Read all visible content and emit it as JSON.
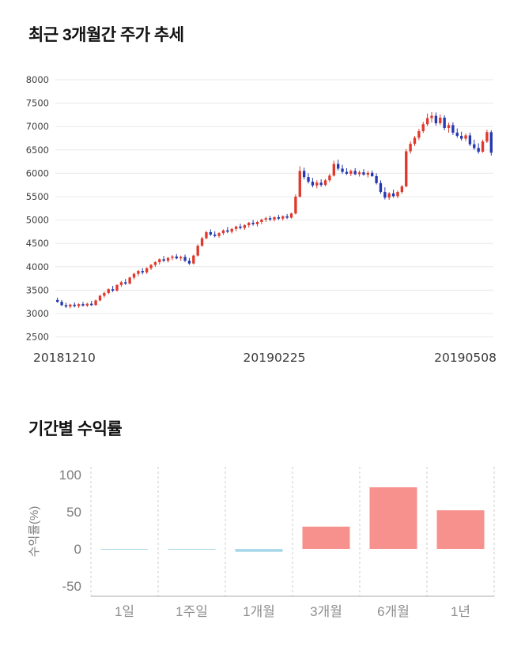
{
  "price_section": {
    "title": "최근 3개월간 주가 추세"
  },
  "returns_section": {
    "title": "기간별 수익률",
    "ylabel": "수익률(%)"
  },
  "chart_data": [
    {
      "type": "candlestick",
      "title": "최근 3개월간 주가 추세",
      "ylim": [
        2500,
        8000
      ],
      "yticks": [
        8000,
        7500,
        7000,
        6500,
        6000,
        5500,
        5000,
        4500,
        4000,
        3500,
        3000,
        2500
      ],
      "x_axis_labels": [
        "20181210",
        "20190225",
        "20190508"
      ],
      "up_color": "#e0392b",
      "down_color": "#2438b0",
      "grid_color": "#e8e8e8",
      "candles": [
        [
          3290,
          3340,
          3230,
          3250
        ],
        [
          3250,
          3290,
          3160,
          3180
        ],
        [
          3180,
          3230,
          3120,
          3150
        ],
        [
          3150,
          3210,
          3110,
          3190
        ],
        [
          3190,
          3240,
          3130,
          3160
        ],
        [
          3160,
          3220,
          3120,
          3200
        ],
        [
          3200,
          3250,
          3150,
          3170
        ],
        [
          3170,
          3230,
          3140,
          3210
        ],
        [
          3210,
          3270,
          3160,
          3180
        ],
        [
          3180,
          3300,
          3170,
          3280
        ],
        [
          3280,
          3400,
          3260,
          3380
        ],
        [
          3380,
          3470,
          3340,
          3440
        ],
        [
          3440,
          3540,
          3410,
          3520
        ],
        [
          3520,
          3590,
          3460,
          3490
        ],
        [
          3490,
          3630,
          3470,
          3610
        ],
        [
          3610,
          3700,
          3570,
          3670
        ],
        [
          3670,
          3740,
          3610,
          3640
        ],
        [
          3640,
          3790,
          3620,
          3770
        ],
        [
          3770,
          3870,
          3730,
          3850
        ],
        [
          3850,
          3930,
          3800,
          3910
        ],
        [
          3910,
          3970,
          3840,
          3880
        ],
        [
          3880,
          3990,
          3850,
          3970
        ],
        [
          3970,
          4060,
          3930,
          4040
        ],
        [
          4040,
          4120,
          4000,
          4100
        ],
        [
          4100,
          4180,
          4050,
          4160
        ],
        [
          4160,
          4230,
          4100,
          4130
        ],
        [
          4130,
          4210,
          4090,
          4190
        ],
        [
          4190,
          4250,
          4140,
          4220
        ],
        [
          4220,
          4270,
          4160,
          4180
        ],
        [
          4180,
          4240,
          4130,
          4210
        ],
        [
          4210,
          4260,
          4100,
          4130
        ],
        [
          4130,
          4190,
          4040,
          4070
        ],
        [
          4070,
          4260,
          4050,
          4240
        ],
        [
          4240,
          4480,
          4220,
          4450
        ],
        [
          4450,
          4640,
          4430,
          4610
        ],
        [
          4610,
          4770,
          4590,
          4740
        ],
        [
          4740,
          4800,
          4660,
          4690
        ],
        [
          4690,
          4760,
          4630,
          4660
        ],
        [
          4660,
          4740,
          4620,
          4720
        ],
        [
          4720,
          4800,
          4680,
          4780
        ],
        [
          4780,
          4850,
          4720,
          4750
        ],
        [
          4750,
          4830,
          4710,
          4810
        ],
        [
          4810,
          4880,
          4760,
          4860
        ],
        [
          4860,
          4920,
          4800,
          4830
        ],
        [
          4830,
          4910,
          4790,
          4890
        ],
        [
          4890,
          4960,
          4840,
          4940
        ],
        [
          4940,
          5000,
          4880,
          4910
        ],
        [
          4910,
          4980,
          4860,
          4960
        ],
        [
          4960,
          5030,
          4910,
          5010
        ],
        [
          5010,
          5070,
          4960,
          5040
        ],
        [
          5040,
          5090,
          4980,
          5010
        ],
        [
          5010,
          5080,
          4970,
          5060
        ],
        [
          5060,
          5110,
          5000,
          5030
        ],
        [
          5030,
          5100,
          4990,
          5080
        ],
        [
          5080,
          5130,
          5020,
          5050
        ],
        [
          5050,
          5160,
          5030,
          5140
        ],
        [
          5140,
          5550,
          5120,
          5500
        ],
        [
          5500,
          6150,
          5480,
          6050
        ],
        [
          6050,
          6120,
          5870,
          5920
        ],
        [
          5920,
          6000,
          5780,
          5820
        ],
        [
          5820,
          5900,
          5700,
          5740
        ],
        [
          5740,
          5850,
          5680,
          5800
        ],
        [
          5800,
          5870,
          5710,
          5750
        ],
        [
          5750,
          5880,
          5720,
          5850
        ],
        [
          5850,
          5990,
          5810,
          5950
        ],
        [
          5950,
          6270,
          5930,
          6200
        ],
        [
          6200,
          6290,
          6060,
          6100
        ],
        [
          6100,
          6180,
          5990,
          6030
        ],
        [
          6030,
          6110,
          5960,
          5990
        ],
        [
          5990,
          6080,
          5940,
          6050
        ],
        [
          6050,
          6110,
          5960,
          5980
        ],
        [
          5980,
          6060,
          5930,
          6020
        ],
        [
          6020,
          6090,
          5950,
          5970
        ],
        [
          5970,
          6050,
          5910,
          6010
        ],
        [
          6010,
          6060,
          5920,
          5940
        ],
        [
          5940,
          6000,
          5760,
          5790
        ],
        [
          5790,
          5850,
          5560,
          5600
        ],
        [
          5600,
          5700,
          5440,
          5480
        ],
        [
          5480,
          5600,
          5430,
          5570
        ],
        [
          5570,
          5650,
          5480,
          5510
        ],
        [
          5510,
          5630,
          5470,
          5600
        ],
        [
          5600,
          5750,
          5560,
          5720
        ],
        [
          5720,
          6520,
          5700,
          6470
        ],
        [
          6470,
          6680,
          6420,
          6630
        ],
        [
          6630,
          6800,
          6580,
          6760
        ],
        [
          6760,
          6950,
          6710,
          6900
        ],
        [
          6900,
          7100,
          6860,
          7050
        ],
        [
          7050,
          7280,
          7010,
          7180
        ],
        [
          7180,
          7310,
          7090,
          7230
        ],
        [
          7230,
          7300,
          7020,
          7070
        ],
        [
          7070,
          7260,
          7030,
          7190
        ],
        [
          7190,
          7240,
          6920,
          6970
        ],
        [
          6970,
          7080,
          6870,
          7030
        ],
        [
          7030,
          7090,
          6820,
          6870
        ],
        [
          6870,
          6960,
          6760,
          6800
        ],
        [
          6800,
          6890,
          6700,
          6740
        ],
        [
          6740,
          6850,
          6690,
          6810
        ],
        [
          6810,
          6870,
          6580,
          6620
        ],
        [
          6620,
          6720,
          6500,
          6540
        ],
        [
          6540,
          6640,
          6420,
          6460
        ],
        [
          6460,
          6720,
          6440,
          6680
        ],
        [
          6680,
          6930,
          6650,
          6880
        ],
        [
          6880,
          6920,
          6380,
          6440
        ]
      ]
    },
    {
      "type": "bar",
      "title": "기간별 수익률",
      "ylabel": "수익률(%)",
      "categories": [
        "1일",
        "1주일",
        "1개월",
        "3개월",
        "6개월",
        "1년"
      ],
      "values": [
        -0.3,
        -1,
        -4,
        30,
        83,
        52
      ],
      "ylim": [
        -50,
        100
      ],
      "yticks": [
        100,
        50,
        0,
        -50
      ],
      "positive_color": "#f7918e",
      "negative_color": "#a9d8ea",
      "grid_line_color": "#cccccc",
      "axis_line_color": "#aaaaaa",
      "grid": "vertical-dashed",
      "legend": "none"
    }
  ]
}
